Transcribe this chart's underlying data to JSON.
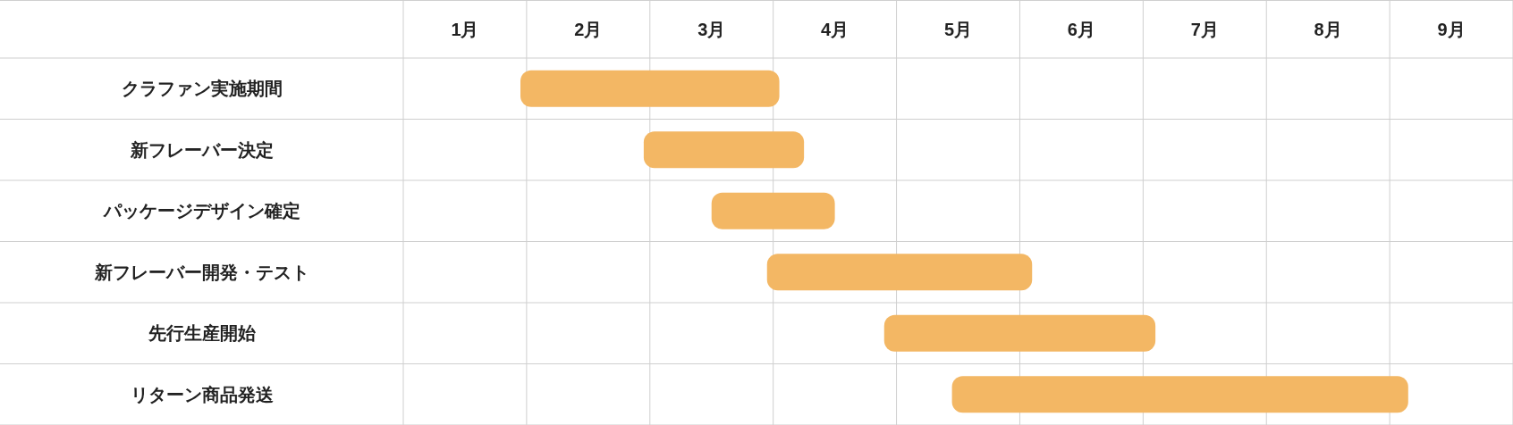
{
  "chart_data": {
    "type": "bar",
    "orientation": "horizontal",
    "categories": [
      "クラファン実施期間",
      "新フレーバー決定",
      "パッケージデザイン確定",
      "新フレーバー開発・テスト",
      "先行生産開始",
      "リターン商品発送"
    ],
    "series": [
      {
        "color": "#f3b764",
        "base": [
          0.95,
          1.95,
          2.5,
          2.95,
          3.9,
          4.45
        ],
        "values": [
          2.1,
          1.3,
          1.0,
          2.15,
          2.2,
          3.7
        ]
      }
    ],
    "xlim": [
      0,
      9
    ],
    "xticks": [
      {
        "value": 0,
        "label": null
      },
      {
        "value": 1,
        "label": null
      },
      {
        "value": 2,
        "label": null
      },
      {
        "value": 3,
        "label": null
      },
      {
        "value": 4,
        "label": null
      },
      {
        "value": 5,
        "label": null
      },
      {
        "value": 6,
        "label": null
      },
      {
        "value": 7,
        "label": null
      },
      {
        "value": 8,
        "label": null
      },
      {
        "value": 9,
        "label": null
      },
      {
        "value": 0.5,
        "label": "1月"
      },
      {
        "value": 1.5,
        "label": "2月"
      },
      {
        "value": 2.5,
        "label": "3月"
      },
      {
        "value": 3.5,
        "label": "4月"
      },
      {
        "value": 4.5,
        "label": "5月"
      },
      {
        "value": 5.5,
        "label": "6月"
      },
      {
        "value": 6.5,
        "label": "7月"
      },
      {
        "value": 7.5,
        "label": "8月"
      },
      {
        "value": 8.5,
        "label": "9月"
      }
    ],
    "grid": true
  }
}
